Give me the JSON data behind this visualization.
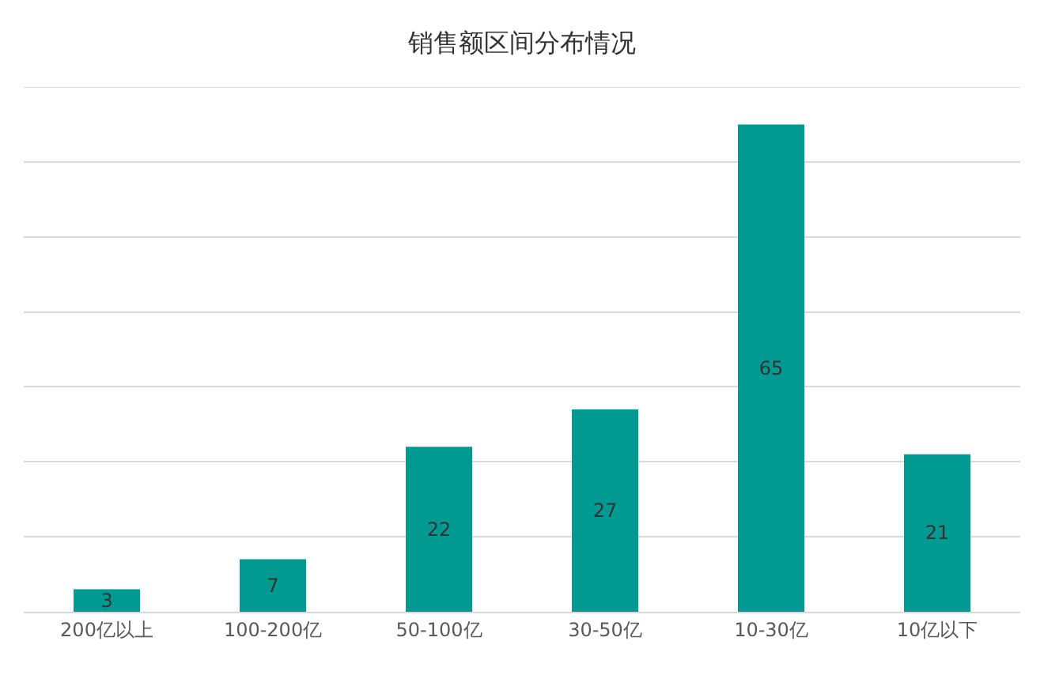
{
  "chart_data": {
    "type": "bar",
    "title": "销售额区间分布情况",
    "categories": [
      "200亿以上",
      "100-200亿",
      "50-100亿",
      "30-50亿",
      "10-30亿",
      "10亿以下"
    ],
    "values": [
      3,
      7,
      22,
      27,
      65,
      21
    ],
    "color": "#009a93",
    "data_labels": true,
    "ylim": [
      0,
      70
    ],
    "yticks": [
      {
        "value": 0,
        "label": null
      },
      {
        "value": 10,
        "label": null
      },
      {
        "value": 20,
        "label": null
      },
      {
        "value": 30,
        "label": null
      },
      {
        "value": 40,
        "label": null
      },
      {
        "value": 50,
        "label": null
      },
      {
        "value": 60,
        "label": null
      },
      {
        "value": 70,
        "label": null
      }
    ],
    "grid": "y",
    "tick_labels": "x"
  }
}
